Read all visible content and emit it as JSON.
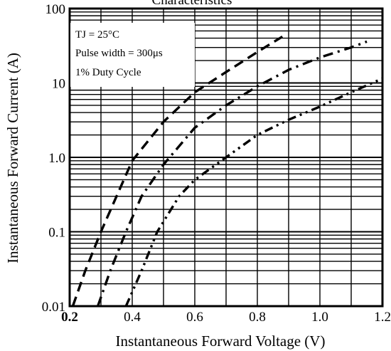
{
  "chart_data": {
    "type": "line",
    "title": "Characteristics",
    "xlabel": "Instantaneous Forward Voltage (V)",
    "ylabel": "Instantaneous Forward Current (A)",
    "x_scale": "linear",
    "y_scale": "log",
    "xlim": [
      0.2,
      1.2
    ],
    "ylim": [
      0.01,
      100
    ],
    "x_ticks": [
      {
        "value": 0.2,
        "label": "0.2",
        "bold": true
      },
      {
        "value": 0.4,
        "label": "0.4",
        "bold": false
      },
      {
        "value": 0.6,
        "label": "0.6",
        "bold": false
      },
      {
        "value": 0.8,
        "label": "0.8",
        "bold": false
      },
      {
        "value": 1.0,
        "label": "1.0",
        "bold": false
      },
      {
        "value": 1.2,
        "label": "1.2",
        "bold": false
      }
    ],
    "y_ticks": [
      {
        "value": 0.01,
        "label": "0.01"
      },
      {
        "value": 0.1,
        "label": "0.1"
      },
      {
        "value": 1,
        "label": "1.0"
      },
      {
        "value": 10,
        "label": "10"
      },
      {
        "value": 100,
        "label": "100"
      }
    ],
    "grid": true,
    "annotations": [
      "TJ = 25°C",
      "Pulse width = 300μs",
      "1% Duty Cycle"
    ],
    "series": [
      {
        "style": "dashed",
        "points": [
          [
            0.21,
            0.01
          ],
          [
            0.25,
            0.03
          ],
          [
            0.3,
            0.1
          ],
          [
            0.35,
            0.3
          ],
          [
            0.4,
            0.9
          ],
          [
            0.5,
            3
          ],
          [
            0.6,
            7.5
          ],
          [
            0.7,
            14
          ],
          [
            0.8,
            26
          ],
          [
            0.88,
            42
          ]
        ]
      },
      {
        "style": "dash-dot",
        "points": [
          [
            0.29,
            0.01
          ],
          [
            0.33,
            0.03
          ],
          [
            0.38,
            0.1
          ],
          [
            0.43,
            0.3
          ],
          [
            0.5,
            0.8
          ],
          [
            0.6,
            2.5
          ],
          [
            0.7,
            5
          ],
          [
            0.8,
            9
          ],
          [
            0.9,
            15
          ],
          [
            1.0,
            22
          ],
          [
            1.1,
            30
          ],
          [
            1.15,
            36
          ]
        ]
      },
      {
        "style": "dash-dot-dot",
        "points": [
          [
            0.38,
            0.01
          ],
          [
            0.43,
            0.03
          ],
          [
            0.48,
            0.1
          ],
          [
            0.55,
            0.3
          ],
          [
            0.6,
            0.5
          ],
          [
            0.7,
            1.0
          ],
          [
            0.8,
            2.0
          ],
          [
            0.9,
            3.2
          ],
          [
            1.0,
            4.8
          ],
          [
            1.1,
            7.5
          ],
          [
            1.2,
            11.5
          ]
        ]
      }
    ]
  }
}
